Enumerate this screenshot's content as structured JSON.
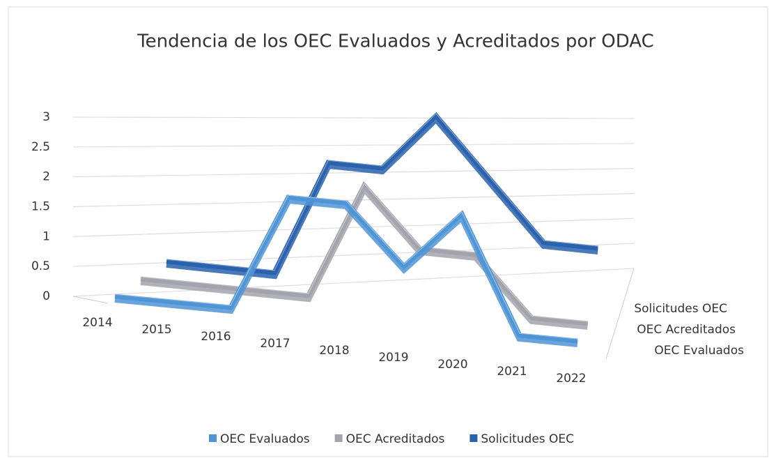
{
  "chart_data": {
    "type": "line3d",
    "title": "Tendencia de los OEC Evaluados y Acreditados por ODAC",
    "categories": [
      "2014",
      "2015",
      "2016",
      "2017",
      "2018",
      "2019",
      "2020",
      "2021",
      "2022"
    ],
    "series": [
      {
        "name": "OEC Evaluados",
        "color": "#4f95d6",
        "values": [
          0,
          0,
          0,
          2,
          2,
          1,
          2,
          0,
          0
        ]
      },
      {
        "name": "OEC Acreditados",
        "color": "#a3a3ad",
        "values": [
          0,
          0,
          0,
          0,
          2,
          1,
          1,
          0,
          0
        ]
      },
      {
        "name": "Solicitudes OEC",
        "color": "#2a62ad",
        "values": [
          0,
          0,
          0,
          2,
          2,
          3,
          2,
          1,
          1
        ]
      }
    ],
    "ylim": [
      0,
      3
    ],
    "yticks": [
      0,
      0.5,
      1,
      1.5,
      2,
      2.5,
      3
    ],
    "grid": true,
    "legend": "bottom"
  }
}
